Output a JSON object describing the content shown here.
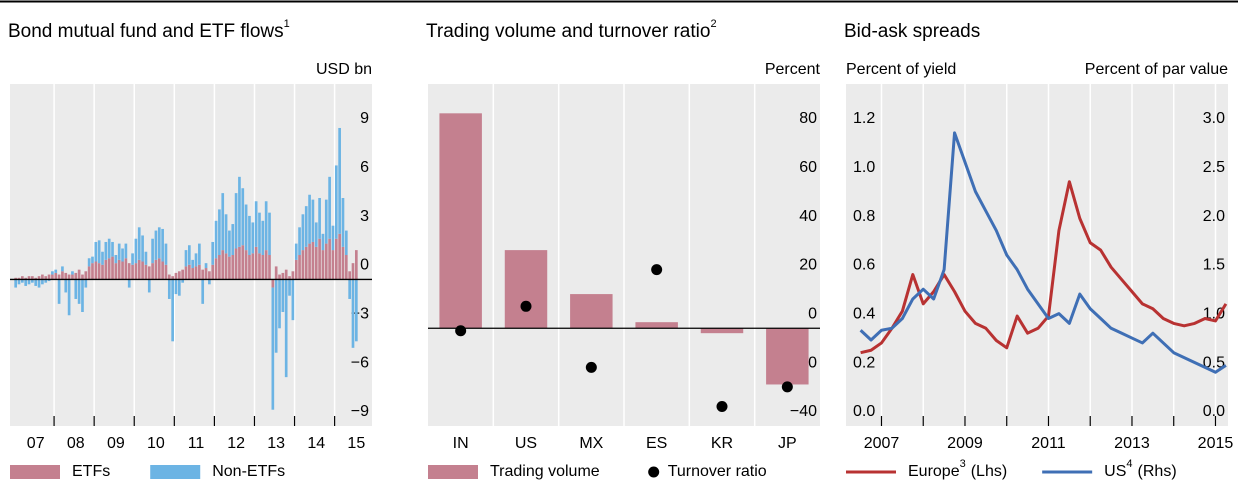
{
  "chart_data": [
    {
      "type": "bar",
      "title": "Bond mutual fund and ETF flows",
      "title_footnote": "1",
      "y_unit": "USD bn",
      "yaxis_side": "right",
      "stacked": true,
      "categories": [
        null,
        null,
        null,
        null,
        null,
        null,
        "07",
        null,
        null,
        null,
        null,
        null,
        null,
        null,
        null,
        null,
        null,
        null,
        "08",
        null,
        null,
        null,
        null,
        null,
        null,
        null,
        null,
        null,
        null,
        null,
        "09",
        null,
        null,
        null,
        null,
        null,
        null,
        null,
        null,
        null,
        null,
        null,
        "10",
        null,
        null,
        null,
        null,
        null,
        null,
        null,
        null,
        null,
        null,
        null,
        "11",
        null,
        null,
        null,
        null,
        null,
        null,
        null,
        null,
        null,
        null,
        null,
        "12",
        null,
        null,
        null,
        null,
        null,
        null,
        null,
        null,
        null,
        null,
        null,
        "13",
        null,
        null,
        null,
        null,
        null,
        null,
        null,
        null,
        null,
        null,
        null,
        "14",
        null,
        null,
        null,
        null,
        null,
        null,
        null,
        null,
        null,
        null,
        null,
        "15"
      ],
      "series": [
        {
          "name": "ETFs",
          "color": "#c4808f",
          "values": [
            0.1,
            0.1,
            0.2,
            0.1,
            0.2,
            0.2,
            0.1,
            0.2,
            0.3,
            0.2,
            0.3,
            0.3,
            0.4,
            0.3,
            0.5,
            0.4,
            0.3,
            0.3,
            0.4,
            0.6,
            0.3,
            0.5,
            0.8,
            1.0,
            1.1,
            1.0,
            0.9,
            1.2,
            1.3,
            1.4,
            1.0,
            1.2,
            1.1,
            1.3,
            1.0,
            0.9,
            1.0,
            1.2,
            1.1,
            0.9,
            0.8,
            1.0,
            1.2,
            1.3,
            1.1,
            0.9,
            0.3,
            0.2,
            0.4,
            0.5,
            0.6,
            0.8,
            0.9,
            0.7,
            0.8,
            0.9,
            0.6,
            0.7,
            0.5,
            0.9,
            1.3,
            1.5,
            1.8,
            1.6,
            1.4,
            1.5,
            1.9,
            2.0,
            2.1,
            1.8,
            1.5,
            1.6,
            2.0,
            1.6,
            1.5,
            1.8,
            1.5,
            -0.5,
            0.8,
            0.3,
            0.4,
            0.6,
            0.2,
            0.5,
            1.2,
            1.5,
            1.8,
            2.0,
            2.2,
            2.3,
            2.0,
            2.5,
            1.8,
            2.2,
            2.5,
            1.8,
            2.5,
            2.8,
            2.0,
            1.5,
            0.5,
            1.0,
            1.8
          ]
        },
        {
          "name": "Non-ETFs",
          "color": "#6cb4e4",
          "values": [
            -0.5,
            -0.3,
            -0.2,
            -0.4,
            -0.3,
            -0.2,
            -0.4,
            -0.5,
            -0.3,
            -0.2,
            -0.1,
            0.2,
            0.2,
            -1.5,
            0.3,
            -0.8,
            -2.2,
            0.2,
            -1.2,
            -1.5,
            -2.0,
            -0.5,
            0.5,
            0.4,
            1.2,
            1.4,
            0.8,
            1.1,
            1.2,
            0.9,
            0.5,
            1.0,
            0.8,
            0.9,
            -0.5,
            0.7,
            1.5,
            2.0,
            1.6,
            0.8,
            -0.8,
            1.5,
            1.8,
            1.9,
            2.0,
            1.3,
            -1.2,
            -3.8,
            -0.9,
            -1.0,
            -0.2,
            1.0,
            1.2,
            0.5,
            0.8,
            1.3,
            -1.5,
            0.3,
            -0.3,
            1.4,
            2.3,
            2.8,
            3.5,
            2.4,
            1.6,
            1.9,
            3.4,
            4.3,
            3.5,
            2.8,
            2.4,
            1.9,
            2.8,
            2.5,
            2.1,
            3.0,
            2.6,
            -7.5,
            -4.5,
            -3.0,
            -2.0,
            -6.0,
            -1.0,
            -2.5,
            1.0,
            1.7,
            2.2,
            2.5,
            3.0,
            2.6,
            1.5,
            2.5,
            1.0,
            2.7,
            3.8,
            1.5,
            4.5,
            6.5,
            3.0,
            1.5,
            -1.2,
            -4.2,
            -3.8
          ]
        }
      ],
      "ylim": [
        -9,
        12
      ],
      "yticks": [
        {
          "value": -9,
          "label": "−9"
        },
        {
          "value": -6,
          "label": "−6"
        },
        {
          "value": -3,
          "label": "−3"
        },
        0,
        3,
        6,
        9
      ]
    },
    {
      "type": "bar",
      "title": "Trading volume and turnover ratio",
      "title_footnote": "2",
      "y_unit": "Percent",
      "yaxis_side": "right",
      "categories": [
        "IN",
        "US",
        "MX",
        "ES",
        "KR",
        "JP"
      ],
      "series": [
        {
          "name": "Trading volume",
          "color": "#c4808f",
          "values": [
            88,
            32,
            14,
            2.5,
            -2,
            -23
          ]
        },
        {
          "name": "Turnover ratio",
          "type": "scatter",
          "color": "#000000",
          "values": [
            -1,
            9,
            -16,
            24,
            -32,
            -24
          ]
        }
      ],
      "ylim": [
        -40,
        100
      ],
      "yticks": [
        {
          "value": -40,
          "label": "−40"
        },
        {
          "value": -20,
          "label": "−20"
        },
        0,
        20,
        40,
        60,
        80
      ]
    },
    {
      "type": "line",
      "title": "Bid-ask spreads",
      "y_unit": "Percent of yield",
      "y2_unit": "Percent of par value",
      "yaxis_side": "left",
      "x": [
        2006.5,
        2006.75,
        2007,
        2007.25,
        2007.5,
        2007.75,
        2008,
        2008.25,
        2008.5,
        2008.75,
        2009,
        2009.25,
        2009.5,
        2009.75,
        2010,
        2010.25,
        2010.5,
        2010.75,
        2011,
        2011.25,
        2011.5,
        2011.75,
        2012,
        2012.25,
        2012.5,
        2012.75,
        2013,
        2013.25,
        2013.5,
        2013.75,
        2014,
        2014.25,
        2014.5,
        2014.75,
        2015,
        2015.25
      ],
      "series": [
        {
          "name": "Europe",
          "footnote": "3",
          "side": "(Lhs)",
          "color": "#b83232",
          "values": [
            0.3,
            0.31,
            0.34,
            0.4,
            0.47,
            0.62,
            0.5,
            0.55,
            0.62,
            0.55,
            0.47,
            0.42,
            0.4,
            0.35,
            0.32,
            0.45,
            0.38,
            0.4,
            0.45,
            0.8,
            1.0,
            0.85,
            0.75,
            0.72,
            0.65,
            0.6,
            0.55,
            0.5,
            0.48,
            0.44,
            0.42,
            0.41,
            0.42,
            0.44,
            0.43,
            0.5
          ]
        },
        {
          "name": "US",
          "footnote": "4",
          "side": "(Rhs)",
          "axis": "y2",
          "color": "#3f6fb5",
          "values": [
            0.98,
            0.88,
            0.98,
            1.0,
            1.1,
            1.3,
            1.4,
            1.3,
            1.6,
            3.0,
            2.7,
            2.4,
            2.2,
            2.0,
            1.75,
            1.6,
            1.4,
            1.25,
            1.1,
            1.15,
            1.05,
            1.35,
            1.2,
            1.1,
            1.0,
            0.95,
            0.9,
            0.85,
            0.95,
            0.85,
            0.75,
            0.7,
            0.65,
            0.6,
            0.55,
            0.62
          ]
        }
      ],
      "xlim": [
        2006.15,
        2015.3
      ],
      "xticks": [
        2007,
        2009,
        2011,
        2013,
        2015
      ],
      "xminorticks": [
        2008,
        2010,
        2012,
        2014
      ],
      "ylim": [
        0,
        1.4
      ],
      "yticks": [
        {
          "value": 0,
          "label": "0.0"
        },
        0.2,
        0.4,
        0.6,
        0.8,
        {
          "value": 1,
          "label": "1.0"
        },
        1.2
      ],
      "y2lim": [
        0,
        3.5
      ],
      "y2ticks": [
        {
          "value": 0,
          "label": "0.0"
        },
        0.5,
        {
          "value": 1,
          "label": "1.0"
        },
        1.5,
        {
          "value": 2,
          "label": "2.0"
        },
        2.5,
        {
          "value": 3,
          "label": "3.0"
        }
      ]
    }
  ]
}
